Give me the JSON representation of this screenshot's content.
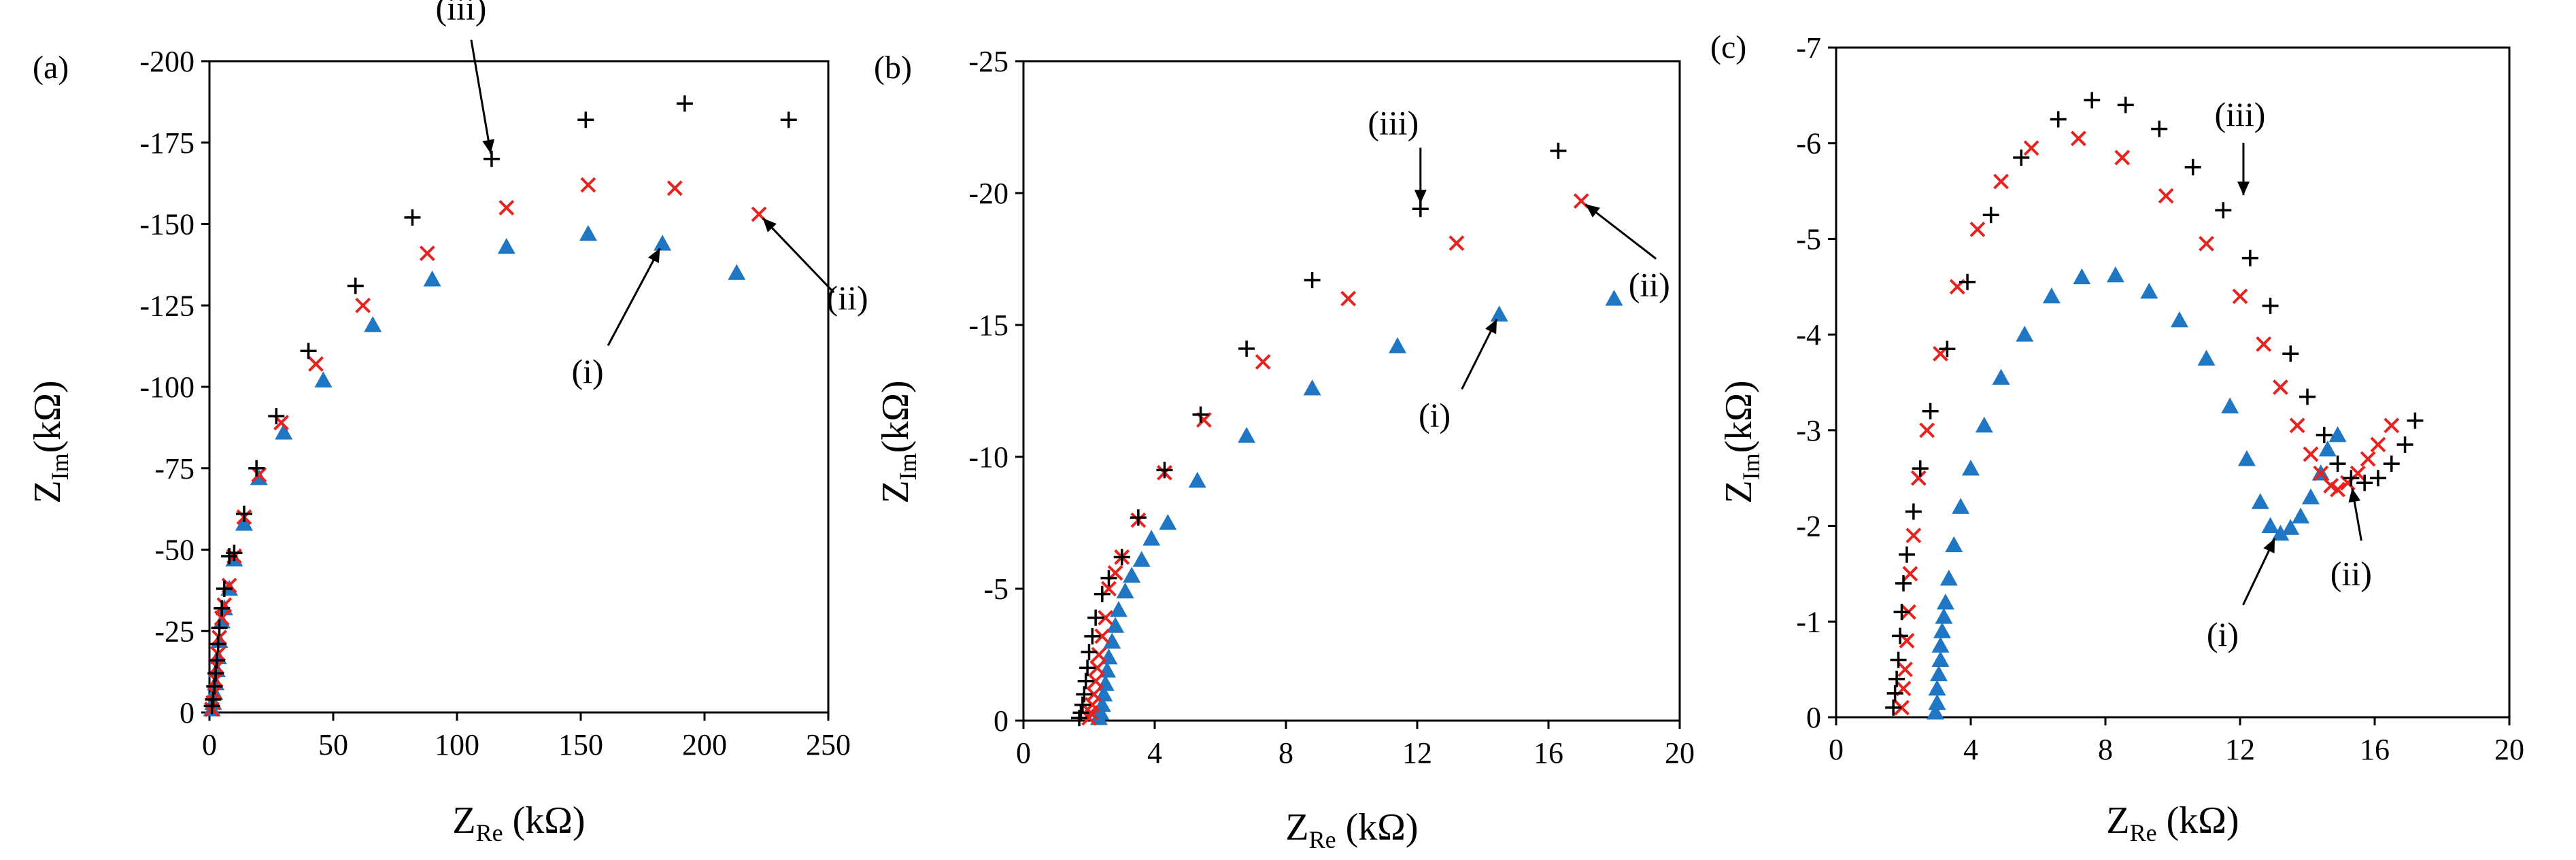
{
  "figure": {
    "description_tag": "Nyquist impedance plots, three panels",
    "colors": {
      "series_i": "#1f77c4",
      "series_ii": "#e8231f",
      "series_iii": "#000000",
      "axis": "#000000"
    },
    "markers": {
      "series_i": "triangle",
      "series_ii": "x-cross",
      "series_iii": "plus"
    }
  },
  "chart_data": [
    {
      "type": "scatter",
      "panel": "(a)",
      "xlabel": {
        "main": "Z",
        "sub": "Re",
        "unit": " (kΩ)"
      },
      "ylabel": {
        "main": "Z",
        "sub": "Im",
        "unit": "(kΩ)"
      },
      "xlim": [
        0,
        250
      ],
      "ylim": [
        0,
        -200
      ],
      "xticks": [
        0,
        50,
        100,
        150,
        200,
        250
      ],
      "xtick_labels": [
        "0",
        "50",
        "100",
        "150",
        "200",
        "250"
      ],
      "yticks": [
        0,
        -25,
        -50,
        -75,
        -100,
        -125,
        -150,
        -175,
        -200
      ],
      "ytick_labels": [
        "0",
        "-25",
        "-50",
        "-75",
        "-100",
        "-125",
        "-150",
        "-175",
        "-200"
      ],
      "series": [
        {
          "name": "(i)",
          "marker": "triangle",
          "color": "#1f77c4",
          "x": [
            1,
            1.5,
            2,
            2.5,
            3,
            3.5,
            4,
            5,
            6,
            8,
            10,
            14,
            20,
            30,
            46,
            66,
            90,
            120,
            153,
            183,
            213
          ],
          "y": [
            -1,
            -3,
            -6,
            -9,
            -13,
            -17,
            -22,
            -28,
            -32,
            -38,
            -47,
            -58,
            -72,
            -86,
            -102,
            -119,
            -133,
            -143,
            -147,
            -144,
            -135
          ]
        },
        {
          "name": "(ii)",
          "marker": "x",
          "color": "#e8231f",
          "x": [
            1,
            1.5,
            2,
            2.5,
            3,
            3.5,
            4,
            5,
            6,
            8,
            10,
            14,
            20,
            29,
            43,
            62,
            88,
            120,
            153,
            188,
            222
          ],
          "y": [
            -1,
            -3,
            -6,
            -10,
            -14,
            -18,
            -23,
            -29,
            -33,
            -39,
            -48,
            -60,
            -73,
            -89,
            -107,
            -125,
            -141,
            -155,
            -162,
            -161,
            -153
          ]
        },
        {
          "name": "(iii)",
          "marker": "plus",
          "color": "#000000",
          "x": [
            1,
            1.5,
            2,
            2.5,
            3,
            3.5,
            4,
            5,
            6,
            8,
            10,
            14,
            19,
            27,
            40,
            59,
            82,
            114,
            152,
            192,
            234
          ],
          "y": [
            -2,
            -4,
            -8,
            -12,
            -16,
            -21,
            -26,
            -32,
            -38,
            -48,
            -49,
            -61,
            -75,
            -91,
            -111,
            -131,
            -152,
            -170,
            -182,
            -187,
            -182
          ]
        }
      ],
      "annotations": [
        {
          "label": "(iii)",
          "point": [
            114,
            -170
          ]
        },
        {
          "label": "(ii)",
          "point": [
            222,
            -153
          ]
        },
        {
          "label": "(i)",
          "point": [
            183,
            -144
          ]
        }
      ]
    },
    {
      "type": "scatter",
      "panel": "(b)",
      "xlabel": {
        "main": "Z",
        "sub": "Re",
        "unit": " (kΩ)"
      },
      "ylabel": {
        "main": "Z",
        "sub": "Im",
        "unit": "(kΩ)"
      },
      "xlim": [
        0,
        20
      ],
      "ylim": [
        0,
        -25
      ],
      "xticks": [
        0,
        4,
        8,
        12,
        16,
        20
      ],
      "xtick_labels": [
        "0",
        "4",
        "8",
        "12",
        "16",
        "20"
      ],
      "yticks": [
        0,
        -5,
        -10,
        -15,
        -20,
        -25
      ],
      "ytick_labels": [
        "0",
        "-5",
        "-10",
        "-15",
        "-20",
        "-25"
      ],
      "series": [
        {
          "name": "(i)",
          "marker": "triangle",
          "color": "#1f77c4",
          "x": [
            2.3,
            2.35,
            2.4,
            2.45,
            2.5,
            2.55,
            2.6,
            2.7,
            2.8,
            2.9,
            3.1,
            3.3,
            3.6,
            3.9,
            4.4,
            5.3,
            6.8,
            8.8,
            11.4,
            14.5,
            18.0
          ],
          "y": [
            -0.1,
            -0.3,
            -0.6,
            -1.0,
            -1.4,
            -1.9,
            -2.4,
            -3.0,
            -3.6,
            -4.2,
            -4.9,
            -5.5,
            -6.1,
            -6.9,
            -7.5,
            -9.1,
            -10.8,
            -12.6,
            -14.2,
            -15.4,
            -16.0
          ]
        },
        {
          "name": "(ii)",
          "marker": "x",
          "color": "#e8231f",
          "x": [
            2.0,
            2.05,
            2.1,
            2.15,
            2.2,
            2.25,
            2.3,
            2.4,
            2.5,
            2.6,
            2.8,
            3.0,
            3.5,
            4.3,
            5.5,
            7.3,
            9.9,
            13.2,
            17.0
          ],
          "y": [
            -0.1,
            -0.3,
            -0.6,
            -1.0,
            -1.5,
            -2.0,
            -2.5,
            -3.2,
            -3.9,
            -5.0,
            -5.6,
            -6.2,
            -7.6,
            -9.4,
            -11.4,
            -13.6,
            -16.0,
            -18.1,
            -19.7
          ]
        },
        {
          "name": "(iii)",
          "marker": "plus",
          "color": "#000000",
          "x": [
            1.7,
            1.75,
            1.8,
            1.85,
            1.9,
            1.95,
            2.0,
            2.1,
            2.2,
            2.4,
            2.6,
            3.0,
            3.5,
            4.3,
            5.4,
            6.8,
            8.8,
            12.1,
            16.3
          ],
          "y": [
            -0.1,
            -0.3,
            -0.6,
            -1.0,
            -1.5,
            -2.0,
            -2.6,
            -3.2,
            -3.9,
            -4.8,
            -5.4,
            -6.2,
            -7.7,
            -9.5,
            -11.6,
            -14.1,
            -16.7,
            -19.4,
            -21.6
          ]
        }
      ],
      "annotations": [
        {
          "label": "(iii)",
          "point": [
            12.1,
            -19.4
          ]
        },
        {
          "label": "(ii)",
          "point": [
            17.0,
            -19.7
          ]
        },
        {
          "label": "(i)",
          "point": [
            14.5,
            -15.4
          ]
        }
      ]
    },
    {
      "type": "scatter",
      "panel": "(c)",
      "xlabel": {
        "main": "Z",
        "sub": "Re",
        "unit": " (kΩ)"
      },
      "ylabel": {
        "main": "Z",
        "sub": "Im",
        "unit": "(kΩ)"
      },
      "xlim": [
        0,
        20
      ],
      "ylim": [
        0,
        -7
      ],
      "xticks": [
        0,
        4,
        8,
        12,
        16,
        20
      ],
      "xtick_labels": [
        "0",
        "4",
        "8",
        "12",
        "16",
        "20"
      ],
      "yticks": [
        0,
        -1,
        -2,
        -3,
        -4,
        -5,
        -6,
        -7
      ],
      "ytick_labels": [
        "0",
        "-1",
        "-2",
        "-3",
        "-4",
        "-5",
        "-6",
        "-7"
      ],
      "series": [
        {
          "name": "(i)",
          "marker": "triangle",
          "color": "#1f77c4",
          "x": [
            2.95,
            3.0,
            3.0,
            3.05,
            3.1,
            3.1,
            3.15,
            3.2,
            3.25,
            3.35,
            3.5,
            3.7,
            4.0,
            4.4,
            4.9,
            5.6,
            6.4,
            7.3,
            8.3,
            9.3,
            10.2,
            11.0,
            11.7,
            12.2,
            12.6,
            12.9,
            13.2,
            13.5,
            13.8,
            14.1,
            14.4,
            14.6,
            14.9
          ],
          "y": [
            -0.05,
            -0.15,
            -0.3,
            -0.45,
            -0.6,
            -0.75,
            -0.9,
            -1.05,
            -1.2,
            -1.45,
            -1.8,
            -2.2,
            -2.6,
            -3.05,
            -3.55,
            -4.0,
            -4.4,
            -4.6,
            -4.62,
            -4.45,
            -4.15,
            -3.75,
            -3.25,
            -2.7,
            -2.25,
            -2.0,
            -1.92,
            -1.98,
            -2.1,
            -2.3,
            -2.55,
            -2.8,
            -2.95
          ]
        },
        {
          "name": "(ii)",
          "marker": "x",
          "color": "#e8231f",
          "x": [
            1.95,
            2.0,
            2.05,
            2.1,
            2.15,
            2.2,
            2.3,
            2.45,
            2.7,
            3.1,
            3.6,
            4.2,
            4.9,
            5.8,
            7.2,
            8.5,
            9.8,
            11.0,
            12.0,
            12.7,
            13.2,
            13.7,
            14.1,
            14.4,
            14.7,
            14.9,
            15.2,
            15.5,
            15.8,
            16.1,
            16.5
          ],
          "y": [
            -0.1,
            -0.3,
            -0.5,
            -0.8,
            -1.1,
            -1.5,
            -1.9,
            -2.5,
            -3.0,
            -3.8,
            -4.5,
            -5.1,
            -5.6,
            -5.95,
            -6.05,
            -5.85,
            -5.45,
            -4.95,
            -4.4,
            -3.9,
            -3.45,
            -3.05,
            -2.75,
            -2.55,
            -2.42,
            -2.38,
            -2.45,
            -2.55,
            -2.7,
            -2.85,
            -3.05
          ]
        },
        {
          "name": "(iii)",
          "marker": "plus",
          "color": "#000000",
          "x": [
            1.7,
            1.75,
            1.8,
            1.85,
            1.9,
            1.95,
            2.0,
            2.1,
            2.3,
            2.5,
            2.8,
            3.3,
            3.9,
            4.6,
            5.5,
            6.6,
            7.6,
            8.6,
            9.6,
            10.6,
            11.5,
            12.3,
            12.9,
            13.5,
            14.0,
            14.5,
            14.9,
            15.3,
            15.7,
            16.1,
            16.5,
            16.9,
            17.2
          ],
          "y": [
            -0.1,
            -0.25,
            -0.4,
            -0.6,
            -0.85,
            -1.1,
            -1.4,
            -1.7,
            -2.15,
            -2.6,
            -3.2,
            -3.85,
            -4.55,
            -5.25,
            -5.85,
            -6.25,
            -6.45,
            -6.4,
            -6.15,
            -5.75,
            -5.3,
            -4.8,
            -4.3,
            -3.8,
            -3.35,
            -2.95,
            -2.65,
            -2.5,
            -2.45,
            -2.5,
            -2.65,
            -2.85,
            -3.1
          ]
        }
      ],
      "annotations": [
        {
          "label": "(iii)",
          "point": [
            12.1,
            -5.4
          ]
        },
        {
          "label": "(ii)",
          "point": [
            15.3,
            -2.45
          ]
        },
        {
          "label": "(i)",
          "point": [
            13.1,
            -1.92
          ]
        }
      ]
    }
  ]
}
